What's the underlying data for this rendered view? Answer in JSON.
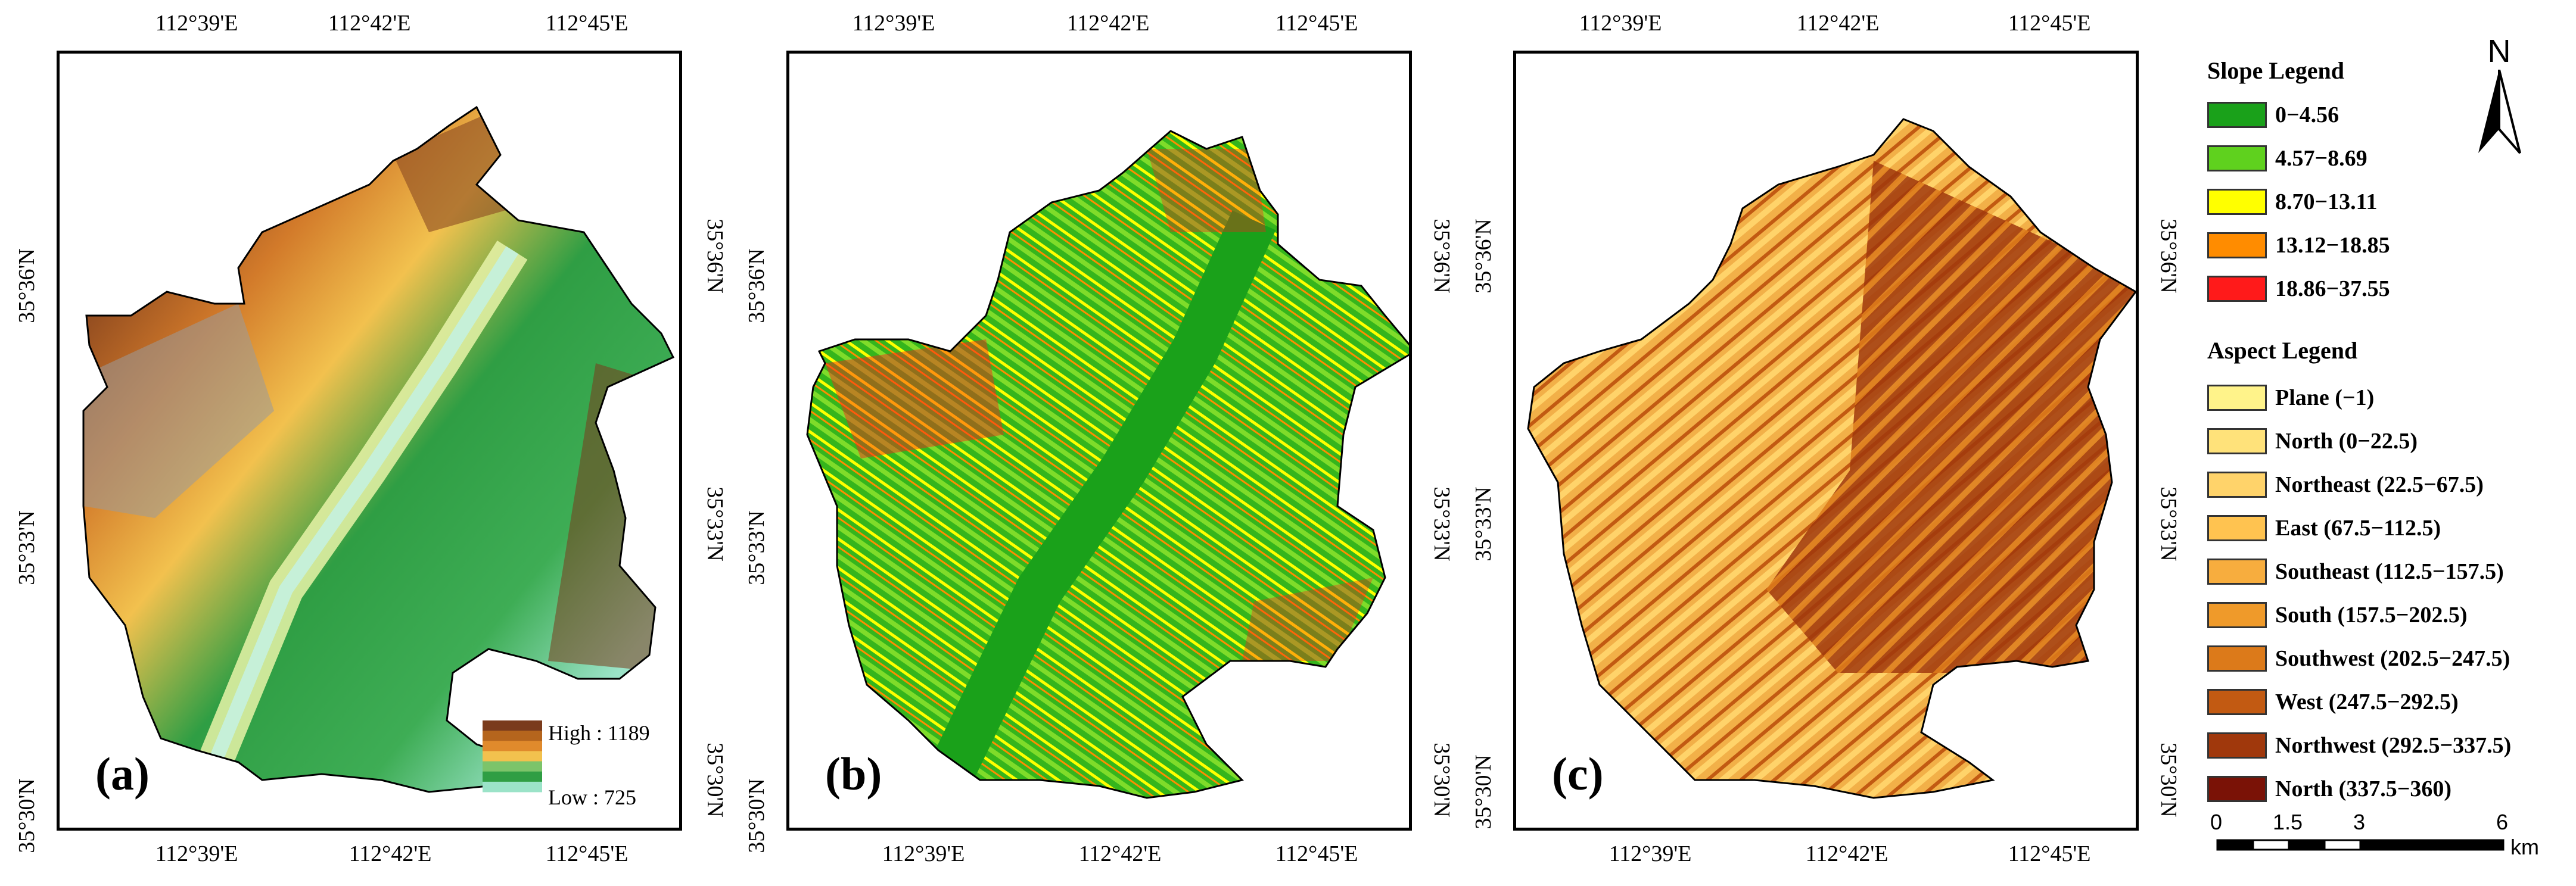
{
  "coords": {
    "top": [
      "112°39'E",
      "112°42'E",
      "112°45'E"
    ],
    "bottom": [
      "112°39'E",
      "112°42'E",
      "112°45'E"
    ],
    "left": [
      "35°36'N",
      "35°33'N",
      "35°30'N"
    ],
    "right": [
      "35°36'N",
      "35°33'N",
      "35°30'N"
    ]
  },
  "panels": [
    {
      "label": "(a)",
      "type": "elevation"
    },
    {
      "label": "(b)",
      "type": "slope"
    },
    {
      "label": "(c)",
      "type": "aspect"
    }
  ],
  "dem_legend": {
    "high": "High : 1189",
    "low": "Low : 725",
    "colors": [
      "#7a3b1c",
      "#b5651d",
      "#e08a2c",
      "#f2c14e",
      "#7cc46a",
      "#2f9e44",
      "#9be3c8"
    ]
  },
  "slope_legend": {
    "title": "Slope Legend",
    "items": [
      {
        "label": "0−4.56",
        "color": "#1aa11a"
      },
      {
        "label": "4.57−8.69",
        "color": "#5fd11e"
      },
      {
        "label": "8.70−13.11",
        "color": "#ffff00"
      },
      {
        "label": "13.12−18.85",
        "color": "#ff8c00"
      },
      {
        "label": "18.86−37.55",
        "color": "#ff1a1a"
      }
    ]
  },
  "aspect_legend": {
    "title": "Aspect Legend",
    "items": [
      {
        "label": "Plane (−1)",
        "color": "#fff38a"
      },
      {
        "label": "North (0−22.5)",
        "color": "#ffe27a"
      },
      {
        "label": "Northeast (22.5−67.5)",
        "color": "#ffd36a"
      },
      {
        "label": "East (67.5−112.5)",
        "color": "#ffc350"
      },
      {
        "label": "Southeast (112.5−157.5)",
        "color": "#f7ad3e"
      },
      {
        "label": "South (157.5−202.5)",
        "color": "#ef9a2a"
      },
      {
        "label": "Southwest (202.5−247.5)",
        "color": "#dc7a1a"
      },
      {
        "label": "West (247.5−292.5)",
        "color": "#c25a12"
      },
      {
        "label": "Northwest (292.5−337.5)",
        "color": "#a0380c"
      },
      {
        "label": "North (337.5−360)",
        "color": "#7a1206"
      }
    ]
  },
  "north_arrow": {
    "label": "N"
  },
  "scale_bar": {
    "ticks": [
      "0",
      "1.5",
      "3",
      "6"
    ],
    "unit": "km"
  }
}
